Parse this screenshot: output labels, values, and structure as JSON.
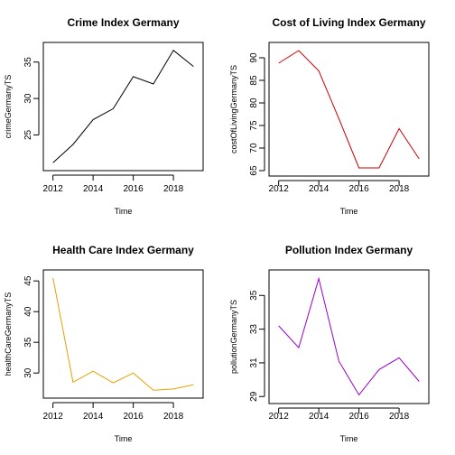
{
  "chart_data": [
    {
      "type": "line",
      "title": "Crime Index Germany",
      "xlabel": "Time",
      "ylabel": "crimeGermanyTS",
      "color": "#000000",
      "x": [
        2012,
        2013,
        2014,
        2015,
        2016,
        2017,
        2018,
        2019
      ],
      "values": [
        21.2,
        23.7,
        27.1,
        28.6,
        33.0,
        32.0,
        36.6,
        34.4
      ],
      "xlim": [
        2011.7,
        2019.3
      ],
      "ylim": [
        20.6,
        37.2
      ],
      "xticks": [
        "2012",
        "2014",
        "2016",
        "2018"
      ],
      "yticks": [
        "25",
        "30",
        "35"
      ]
    },
    {
      "type": "line",
      "title": "Cost of Living Index Germany",
      "xlabel": "Time",
      "ylabel": "costOfLivingGermanyTS",
      "color": "#cc0000",
      "x": [
        2012,
        2013,
        2014,
        2015,
        2016,
        2017,
        2018,
        2019
      ],
      "values": [
        88.8,
        91.6,
        87.1,
        76.5,
        65.6,
        65.6,
        74.3,
        67.6
      ],
      "xlim": [
        2011.7,
        2019.3
      ],
      "ylim": [
        64.6,
        92.6
      ],
      "xticks": [
        "2012",
        "2014",
        "2016",
        "2018"
      ],
      "yticks": [
        "65",
        "70",
        "75",
        "80",
        "85",
        "90"
      ]
    },
    {
      "type": "line",
      "title": "Health Care Index Germany",
      "xlabel": "Time",
      "ylabel": "healthCareGermanyTS",
      "color": "#e69f00",
      "x": [
        2012,
        2013,
        2014,
        2015,
        2016,
        2017,
        2018,
        2019
      ],
      "values": [
        45.5,
        28.5,
        30.3,
        28.4,
        30.0,
        27.2,
        27.4,
        28.1
      ],
      "xlim": [
        2011.7,
        2019.3
      ],
      "ylim": [
        26.5,
        46.2
      ],
      "xticks": [
        "2012",
        "2014",
        "2016",
        "2018"
      ],
      "yticks": [
        "30",
        "35",
        "40",
        "45"
      ]
    },
    {
      "type": "line",
      "title": "Pollution Index Germany",
      "xlabel": "Time",
      "ylabel": "pollutionGermanyTS",
      "color": "#9900cc",
      "x": [
        2012,
        2013,
        2014,
        2015,
        2016,
        2017,
        2018,
        2019
      ],
      "values": [
        33.2,
        31.9,
        36.0,
        31.1,
        29.1,
        30.6,
        31.3,
        29.9
      ],
      "xlim": [
        2011.7,
        2019.3
      ],
      "ylim": [
        28.8,
        36.3
      ],
      "xticks": [
        "2012",
        "2014",
        "2016",
        "2018"
      ],
      "yticks": [
        "29",
        "31",
        "33",
        "35"
      ]
    }
  ]
}
